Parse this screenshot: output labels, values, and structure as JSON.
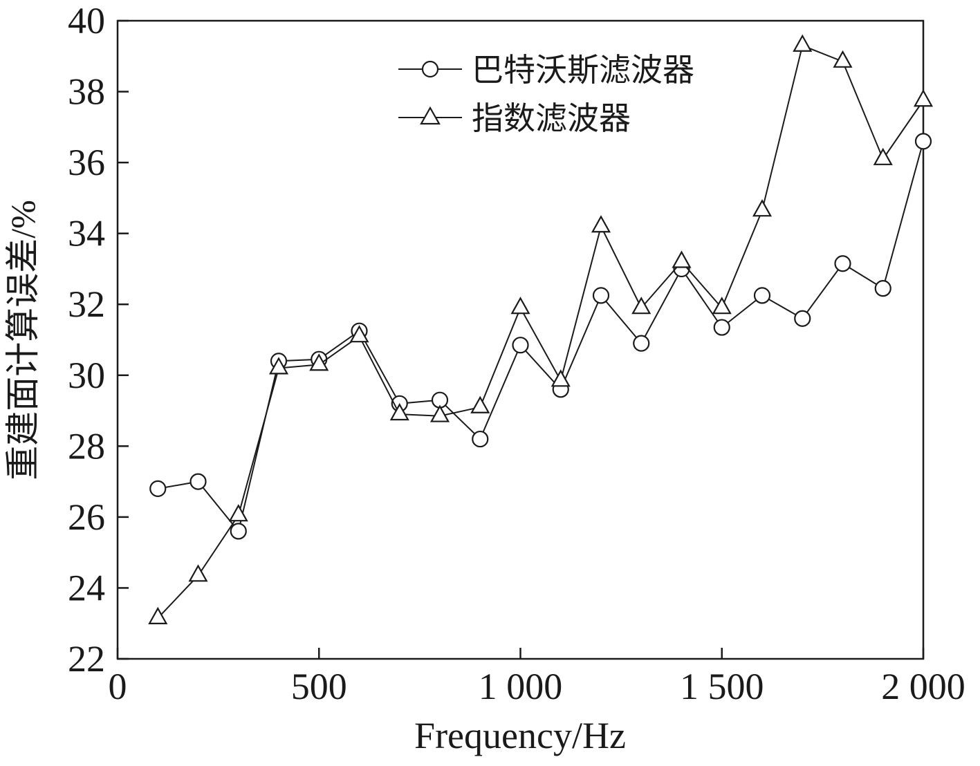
{
  "chart_data": {
    "type": "line",
    "title": "",
    "xlabel": "Frequency/Hz",
    "ylabel": "重建面计算误差/%",
    "xlim": [
      0,
      2000
    ],
    "ylim": [
      22,
      40
    ],
    "x_ticks": [
      0,
      500,
      1000,
      1500,
      2000
    ],
    "x_tick_labels": [
      "0",
      "500",
      "1 000",
      "1 500",
      "2 000"
    ],
    "y_ticks": [
      22,
      24,
      26,
      28,
      30,
      32,
      34,
      36,
      38,
      40
    ],
    "grid": false,
    "legend_position": "top-center-inside",
    "x": [
      100,
      200,
      300,
      400,
      500,
      600,
      700,
      800,
      900,
      1000,
      1100,
      1200,
      1300,
      1400,
      1500,
      1600,
      1700,
      1800,
      1900,
      2000
    ],
    "series": [
      {
        "name": "巴特沃斯滤波器",
        "marker": "circle",
        "values": [
          26.8,
          27.0,
          25.6,
          30.4,
          30.45,
          31.25,
          29.2,
          29.3,
          28.2,
          30.85,
          29.6,
          32.25,
          30.9,
          33.0,
          31.35,
          32.25,
          31.6,
          33.15,
          32.45,
          36.6
        ]
      },
      {
        "name": "指数滤波器",
        "marker": "triangle",
        "values": [
          23.15,
          24.35,
          26.05,
          30.2,
          30.3,
          31.1,
          28.9,
          28.85,
          29.1,
          31.9,
          29.85,
          34.2,
          31.9,
          33.2,
          31.9,
          34.65,
          39.3,
          38.85,
          36.1,
          37.75
        ]
      }
    ],
    "colors": {
      "line": "#1a1a1a",
      "background": "#ffffff"
    }
  }
}
